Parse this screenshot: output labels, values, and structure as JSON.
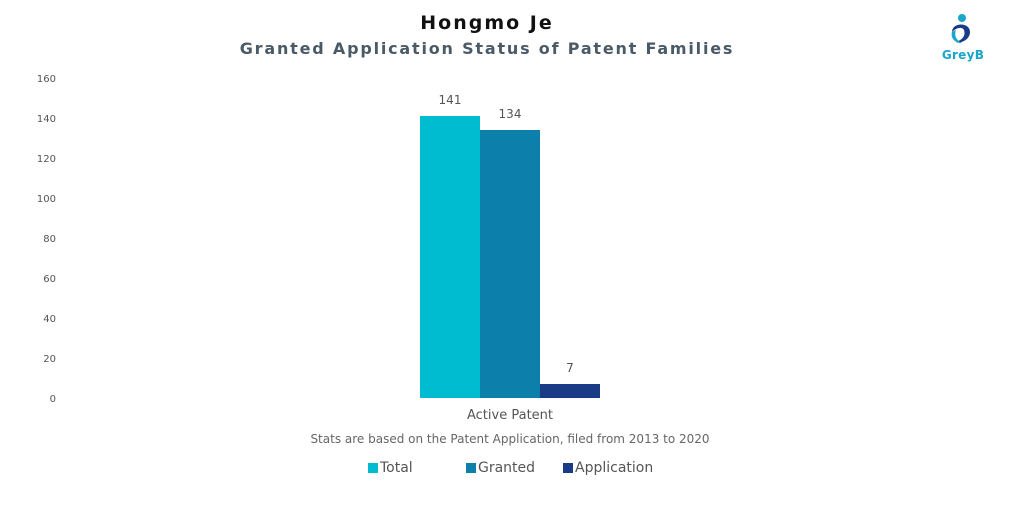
{
  "brand": {
    "logo_text": "GreyB",
    "accent": "#1aa6c8"
  },
  "chart_data": {
    "type": "bar",
    "title": "Hongmo Je",
    "subtitle": "Granted Application Status of Patent Families",
    "categories": [
      "Active Patent"
    ],
    "series": [
      {
        "name": "Total",
        "values": [
          141
        ],
        "color": "#00bcd0"
      },
      {
        "name": "Granted",
        "values": [
          134
        ],
        "color": "#0c7fab"
      },
      {
        "name": "Application",
        "values": [
          7
        ],
        "color": "#1a3b86"
      }
    ],
    "data_labels": [
      "141",
      "134",
      "7"
    ],
    "ylim": [
      0,
      160
    ],
    "yticks": [
      0,
      20,
      40,
      60,
      80,
      100,
      120,
      140,
      160
    ],
    "grid": false,
    "legend_position": "bottom",
    "note": "Stats are based on the Patent Application, filed from 2013 to 2020"
  }
}
